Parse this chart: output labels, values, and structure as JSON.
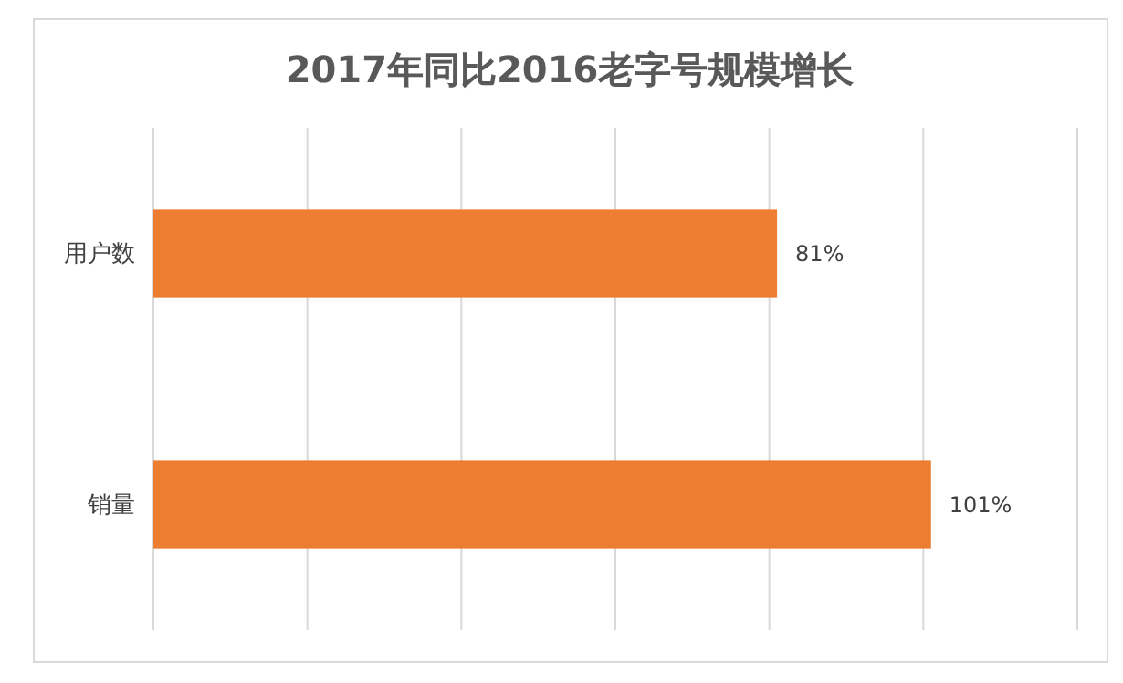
{
  "chart_data": {
    "type": "bar",
    "orientation": "horizontal",
    "title": "2017年同比2016老字号规模增长",
    "categories": [
      "用户数",
      "销量"
    ],
    "values": [
      81,
      101
    ],
    "color": "#ed7d31",
    "value_labels": [
      "81%",
      "101%"
    ],
    "xlim": [
      0,
      120
    ],
    "xticks": [
      0,
      20,
      40,
      60,
      80,
      100,
      120
    ],
    "tick_labels": "y",
    "grid": "x"
  }
}
